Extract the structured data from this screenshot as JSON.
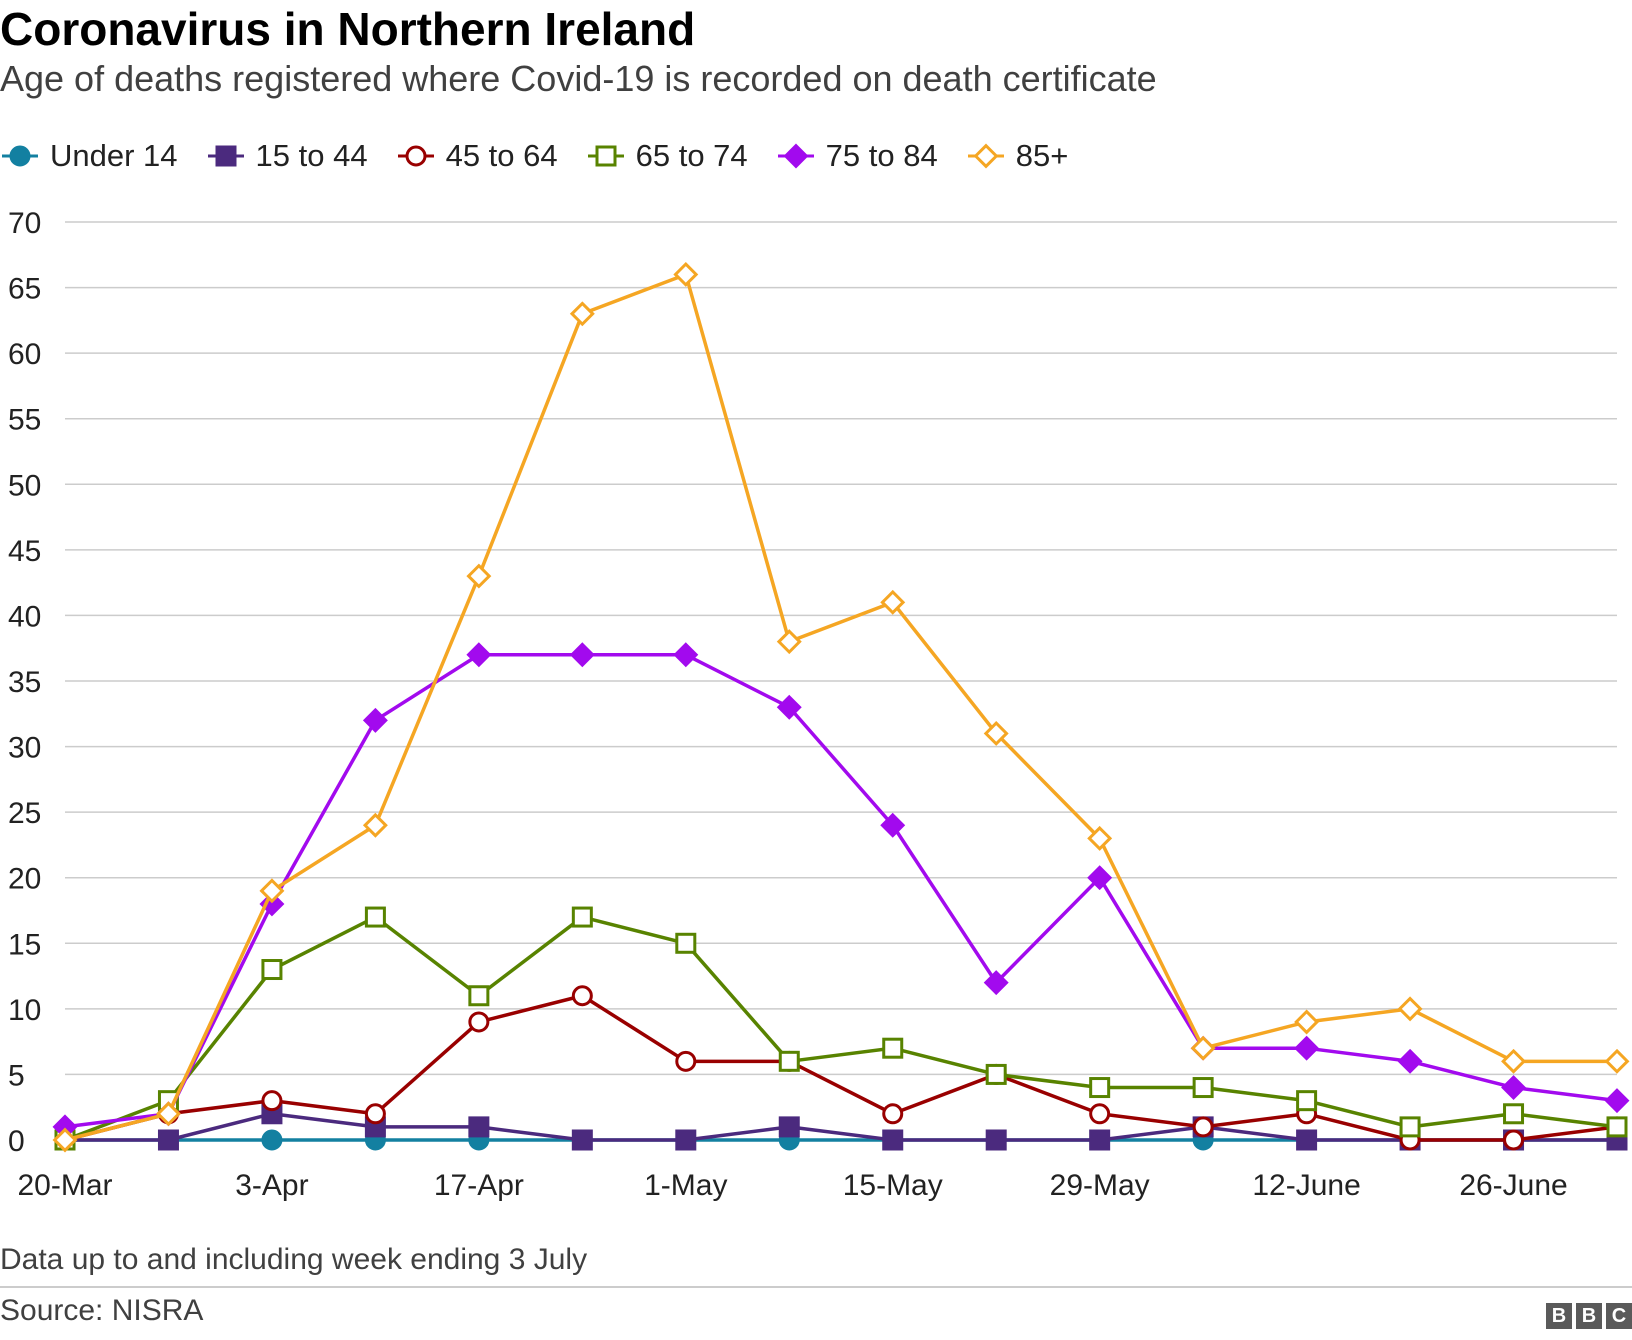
{
  "title": "Coronavirus in Northern Ireland",
  "subtitle": "Age of deaths registered where Covid-19 is recorded on death certificate",
  "note": "Data up to and including week ending 3 July",
  "source": "Source: NISRA",
  "logo": [
    "B",
    "B",
    "C"
  ],
  "chart_data": {
    "type": "line",
    "x_tick_labels": [
      "20-Mar",
      "3-Apr",
      "17-Apr",
      "1-May",
      "15-May",
      "29-May",
      "12-June",
      "26-June"
    ],
    "x_tick_every": 2,
    "num_points": 16,
    "ylim": [
      0,
      70
    ],
    "yticks": [
      0,
      5,
      10,
      15,
      20,
      25,
      30,
      35,
      40,
      45,
      50,
      55,
      60,
      65,
      70
    ],
    "grid": true,
    "legend_position": "top-left",
    "series": [
      {
        "name": "Under 14",
        "color": "#1380a1",
        "marker": "circle-filled",
        "values": [
          0,
          0,
          0,
          0,
          0,
          0,
          0,
          0,
          0,
          0,
          0,
          0,
          0,
          0,
          0,
          0
        ]
      },
      {
        "name": "15 to 44",
        "color": "#4b2a7e",
        "marker": "square-filled",
        "values": [
          0,
          0,
          2,
          1,
          1,
          0,
          0,
          1,
          0,
          0,
          0,
          1,
          0,
          0,
          0,
          0
        ]
      },
      {
        "name": "45 to 64",
        "color": "#990000",
        "marker": "circle-open",
        "values": [
          0,
          2,
          3,
          2,
          9,
          11,
          6,
          6,
          2,
          5,
          2,
          1,
          2,
          0,
          0,
          1
        ]
      },
      {
        "name": "65 to 74",
        "color": "#588300",
        "marker": "square-open",
        "values": [
          0,
          3,
          13,
          17,
          11,
          17,
          15,
          6,
          7,
          5,
          4,
          4,
          3,
          1,
          2,
          1
        ]
      },
      {
        "name": "75 to 84",
        "color": "#a20aee",
        "marker": "diamond-filled",
        "values": [
          1,
          2,
          18,
          32,
          37,
          37,
          37,
          33,
          24,
          12,
          20,
          7,
          7,
          6,
          4,
          3
        ]
      },
      {
        "name": "85+",
        "color": "#f5a623",
        "marker": "diamond-open",
        "values": [
          0,
          2,
          19,
          24,
          43,
          63,
          66,
          38,
          41,
          31,
          23,
          7,
          9,
          10,
          6,
          6
        ]
      }
    ]
  }
}
